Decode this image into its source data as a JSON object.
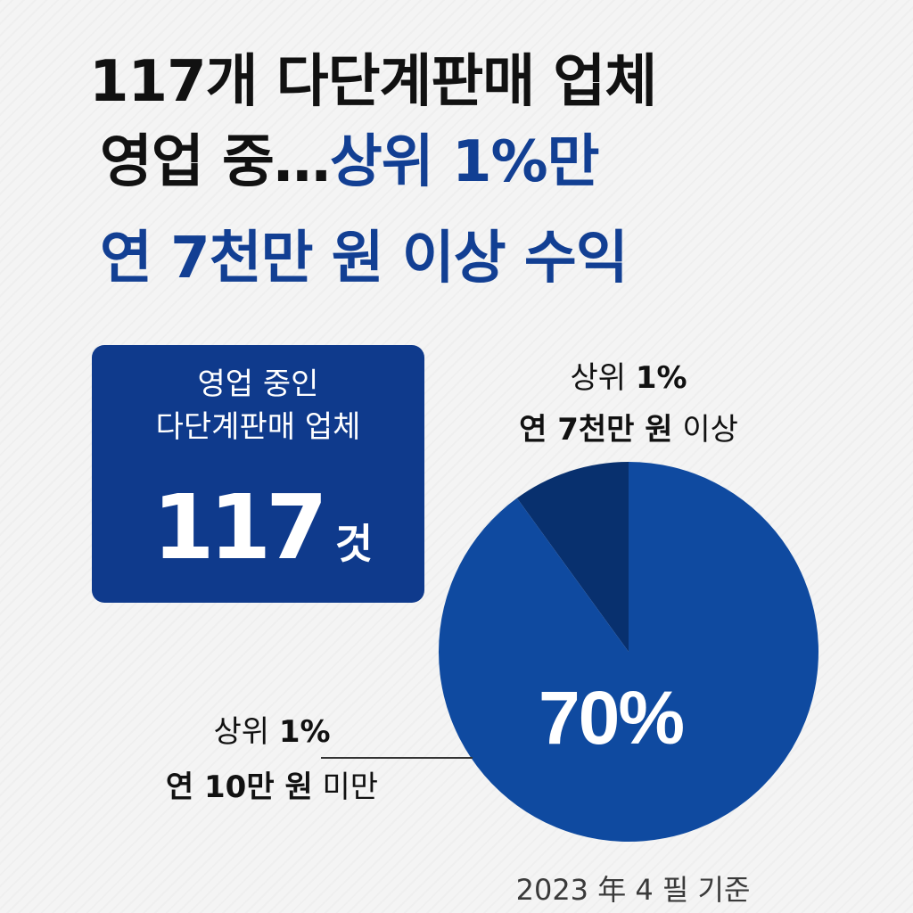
{
  "headline": {
    "line1": "117개 다단계판매 업체",
    "line2_black": "영업 중…",
    "line2_blue": "상위 1%만",
    "line3": "연 7천만 원 이상 수익"
  },
  "count_box": {
    "line1": "영업 중인",
    "line2": "다단계판매 업체",
    "number": "117",
    "unit": "것"
  },
  "label_top": {
    "line1_normal": "상위 ",
    "line1_bold": "1%",
    "line2_bold": "연 7천만 원",
    "line2_normal": " 이상"
  },
  "label_left": {
    "line1_normal": "상위 ",
    "line1_bold": "1%",
    "line2_bold": "연 10만 원",
    "line2_normal": " 미만"
  },
  "footnote": "2023 年 4 필 기준",
  "colors": {
    "title_blue": "#123f93",
    "box_blue": "#0f3a8c",
    "pie_main": "#0f4aa0",
    "pie_slice": "#08306e",
    "white": "#ffffff"
  },
  "chart_data": {
    "type": "pie",
    "slices": [
      {
        "label": "상위 1% 연 7천만 원 이상",
        "value": 10,
        "color": "#08306e"
      },
      {
        "label": "상위 1% 연 10만 원 미만",
        "value": 90,
        "color": "#0f4aa0"
      }
    ],
    "data_label": "70%",
    "title": "",
    "legend": "none"
  }
}
